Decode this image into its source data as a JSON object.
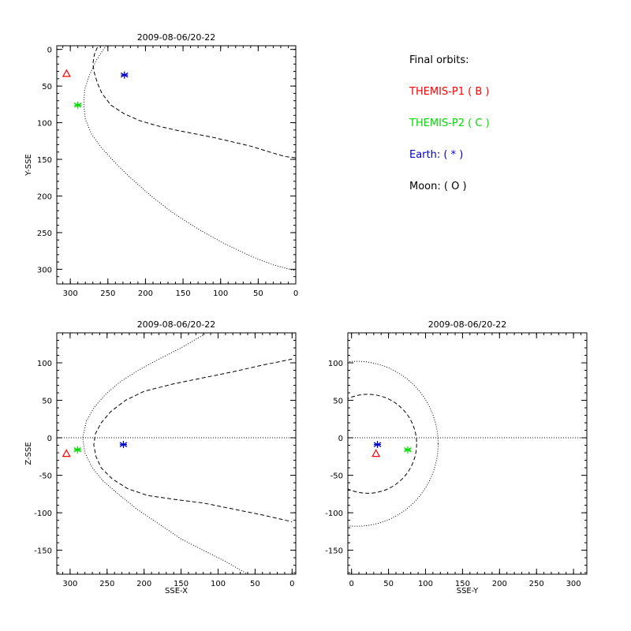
{
  "chart_data": [
    {
      "type": "scatter",
      "title": "2009-08-06/20-22",
      "xlabel": "",
      "ylabel": "Y-SSE",
      "xlim": [
        318,
        0
      ],
      "ylim": [
        320,
        -5
      ],
      "x_ticks": [
        300,
        250,
        200,
        150,
        100,
        50,
        0
      ],
      "y_ticks": [
        0,
        50,
        100,
        150,
        200,
        250,
        300
      ],
      "x_minor_step": 10,
      "y_minor_step": 10,
      "grid": false,
      "markers": [
        {
          "name": "THEMIS-P1",
          "symbol": "triangle",
          "color": "#ff0000",
          "x": 305,
          "y": 33
        },
        {
          "name": "THEMIS-P2",
          "symbol": "asterisk",
          "color": "#00dd00",
          "x": 290,
          "y": 76
        },
        {
          "name": "Earth",
          "symbol": "asterisk",
          "color": "#0000cc",
          "x": 228,
          "y": 35
        }
      ],
      "curves": [
        {
          "style": "dashed",
          "points": [
            [
              264,
              -3
            ],
            [
              268,
              7
            ],
            [
              270,
              20
            ],
            [
              268,
              32
            ],
            [
              264,
              46
            ],
            [
              258,
              60
            ],
            [
              246,
              76
            ],
            [
              228,
              88
            ],
            [
              208,
              97
            ],
            [
              185,
              104
            ],
            [
              160,
              110
            ],
            [
              135,
              115
            ],
            [
              110,
              120
            ],
            [
              85,
              126
            ],
            [
              60,
              132
            ],
            [
              35,
              140
            ],
            [
              15,
              146
            ],
            [
              0,
              148
            ]
          ]
        },
        {
          "style": "dotted",
          "points": [
            [
              252,
              -5
            ],
            [
              258,
              3
            ],
            [
              266,
              16
            ],
            [
              275,
              36
            ],
            [
              281,
              55
            ],
            [
              282,
              76
            ],
            [
              280,
              95
            ],
            [
              272,
              115
            ],
            [
              258,
              135
            ],
            [
              240,
              155
            ],
            [
              220,
              175
            ],
            [
              195,
              198
            ],
            [
              165,
              222
            ],
            [
              130,
              245
            ],
            [
              95,
              265
            ],
            [
              60,
              282
            ],
            [
              30,
              294
            ],
            [
              0,
              302
            ]
          ]
        }
      ]
    },
    {
      "type": "scatter",
      "title": "2009-08-06/20-22",
      "xlabel": "SSE-X",
      "ylabel": "Z-SSE",
      "xlim": [
        318,
        -5
      ],
      "ylim": [
        -182,
        140
      ],
      "x_ticks": [
        300,
        250,
        200,
        150,
        100,
        50,
        0
      ],
      "y_ticks": [
        100,
        50,
        0,
        -50,
        -100,
        -150
      ],
      "x_minor_step": 10,
      "y_minor_step": 10,
      "grid": false,
      "markers": [
        {
          "name": "THEMIS-P1",
          "symbol": "triangle",
          "color": "#ff0000",
          "x": 305,
          "y": -21
        },
        {
          "name": "THEMIS-P2",
          "symbol": "asterisk",
          "color": "#00dd00",
          "x": 290,
          "y": -16
        },
        {
          "name": "Earth",
          "symbol": "asterisk",
          "color": "#0000cc",
          "x": 228,
          "y": -9
        }
      ],
      "curves": [
        {
          "style": "dotted",
          "points": [
            [
              318,
              0
            ],
            [
              -5,
              0
            ]
          ]
        },
        {
          "style": "dashed",
          "points": [
            [
              0,
              105
            ],
            [
              40,
              97
            ],
            [
              80,
              88
            ],
            [
              120,
              80
            ],
            [
              160,
              72
            ],
            [
              200,
              62
            ],
            [
              225,
              50
            ],
            [
              245,
              35
            ],
            [
              258,
              20
            ],
            [
              266,
              5
            ],
            [
              268,
              -10
            ],
            [
              265,
              -25
            ],
            [
              258,
              -40
            ],
            [
              243,
              -55
            ],
            [
              222,
              -68
            ],
            [
              195,
              -77
            ],
            [
              160,
              -82
            ],
            [
              120,
              -87
            ],
            [
              80,
              -95
            ],
            [
              40,
              -103
            ],
            [
              0,
              -112
            ]
          ]
        },
        {
          "style": "dotted",
          "points": [
            [
              115,
              140
            ],
            [
              150,
              120
            ],
            [
              180,
              105
            ],
            [
              208,
              90
            ],
            [
              232,
              75
            ],
            [
              252,
              58
            ],
            [
              268,
              40
            ],
            [
              278,
              22
            ],
            [
              283,
              0
            ],
            [
              280,
              -20
            ],
            [
              270,
              -40
            ],
            [
              255,
              -58
            ],
            [
              235,
              -75
            ],
            [
              210,
              -95
            ],
            [
              180,
              -115
            ],
            [
              150,
              -135
            ],
            [
              120,
              -150
            ],
            [
              90,
              -165
            ],
            [
              60,
              -182
            ]
          ]
        }
      ]
    },
    {
      "type": "scatter",
      "title": "2009-08-06/20-22",
      "xlabel": "SSE-Y",
      "ylabel": "",
      "xlim": [
        -5,
        318
      ],
      "ylim": [
        -182,
        140
      ],
      "x_ticks": [
        0,
        50,
        100,
        150,
        200,
        250,
        300
      ],
      "y_ticks": [
        100,
        50,
        0,
        -50,
        -100,
        -150
      ],
      "x_minor_step": 10,
      "y_minor_step": 10,
      "grid": false,
      "markers": [
        {
          "name": "THEMIS-P1",
          "symbol": "triangle",
          "color": "#ff0000",
          "x": 33,
          "y": -21
        },
        {
          "name": "THEMIS-P2",
          "symbol": "asterisk",
          "color": "#00dd00",
          "x": 76,
          "y": -16
        },
        {
          "name": "Earth",
          "symbol": "asterisk",
          "color": "#0000cc",
          "x": 35,
          "y": -9
        }
      ],
      "curves": [
        {
          "style": "dotted",
          "points": [
            [
              -5,
              0
            ],
            [
              318,
              0
            ]
          ]
        },
        {
          "style": "dashed",
          "circle": {
            "cx": 22,
            "cy": -8,
            "r": 66
          }
        },
        {
          "style": "dotted",
          "circle": {
            "cx": 7,
            "cy": -8,
            "r": 110
          }
        }
      ]
    }
  ],
  "legend": {
    "heading": "Final orbits:",
    "entries": [
      {
        "text": "THEMIS-P1 ( B )",
        "color": "#ff0000"
      },
      {
        "text": "THEMIS-P2 ( C )",
        "color": "#00dd00"
      },
      {
        "text": "Earth: ( * )",
        "color": "#0000cc"
      },
      {
        "text": "Moon: ( O )",
        "color": "#000000"
      }
    ]
  }
}
